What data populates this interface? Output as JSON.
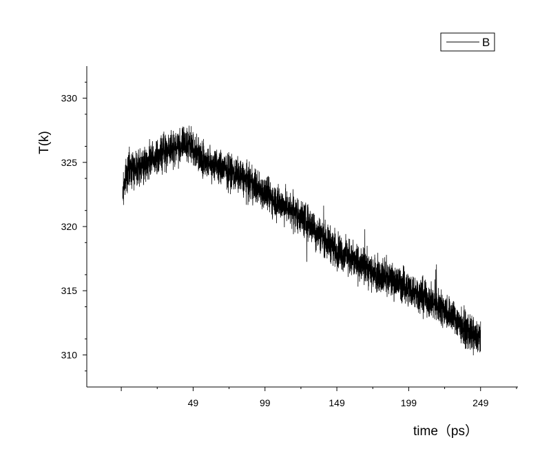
{
  "chart_data": {
    "type": "line",
    "title": "",
    "xlabel": "time（ps）",
    "ylabel": "T(k)",
    "xlim": [
      -25,
      275
    ],
    "ylim": [
      307.5,
      332.5
    ],
    "x_ticks": [
      49,
      99,
      149,
      199,
      249
    ],
    "y_ticks": [
      310,
      315,
      320,
      325,
      330
    ],
    "grid": false,
    "legend_position": "top-right",
    "color": "#000000",
    "series": [
      {
        "name": "B",
        "noise_amplitude": 1.1,
        "x": [
          0,
          1,
          3,
          5,
          10,
          15,
          20,
          25,
          30,
          35,
          40,
          45,
          49,
          55,
          60,
          70,
          80,
          90,
          99,
          110,
          120,
          130,
          140,
          149,
          160,
          170,
          180,
          190,
          199,
          210,
          220,
          230,
          240,
          245,
          249
        ],
        "y": [
          322.3,
          323.5,
          324.3,
          324.6,
          324.7,
          324.8,
          325.2,
          325.5,
          325.9,
          326.1,
          326.3,
          326.4,
          326.1,
          325.4,
          325.0,
          324.5,
          324.0,
          323.3,
          322.6,
          321.8,
          321.1,
          320.2,
          319.1,
          318.2,
          317.4,
          316.7,
          316.2,
          315.7,
          315.2,
          314.5,
          313.8,
          313.0,
          311.8,
          311.4,
          311.3
        ]
      }
    ]
  }
}
